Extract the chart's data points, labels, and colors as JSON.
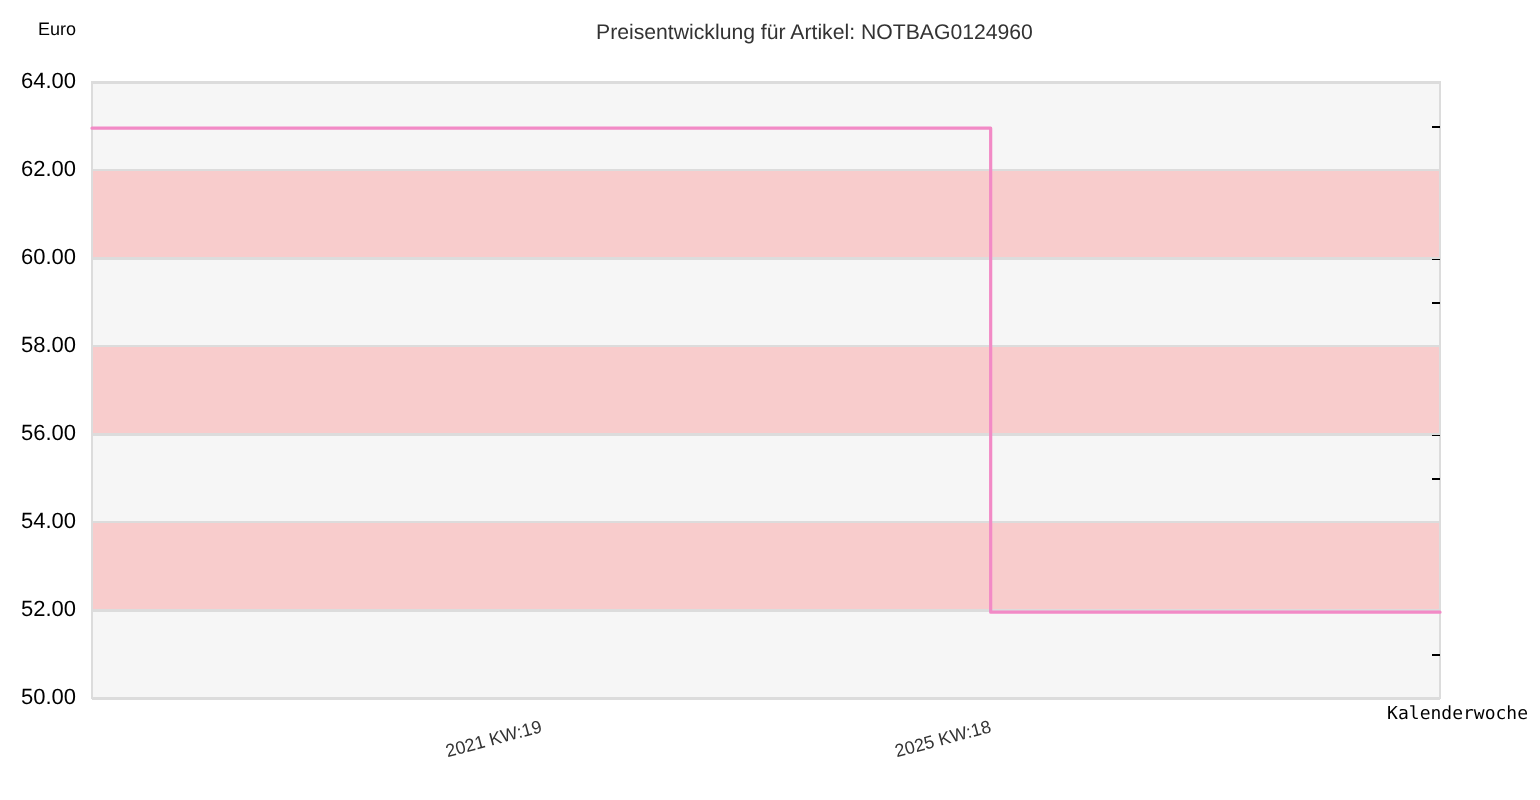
{
  "chart_data": {
    "type": "step",
    "title": "Preisentwicklung für Artikel: NOTBAG0124960",
    "xlabel": "Kalenderwoche",
    "ylabel": "Euro",
    "categories": [
      null,
      "2021 KW:19",
      "2025 KW:18",
      null
    ],
    "values": [
      62.95,
      62.95,
      51.95,
      51.95
    ],
    "color": "#f28ac6",
    "ylim": [
      50,
      64
    ],
    "yticks": [
      {
        "value": 50,
        "label": "50.00"
      },
      {
        "value": 52,
        "label": "52.00"
      },
      {
        "value": 54,
        "label": "54.00"
      },
      {
        "value": 56,
        "label": "56.00"
      },
      {
        "value": 58,
        "label": "58.00"
      },
      {
        "value": 60,
        "label": "60.00"
      },
      {
        "value": 62,
        "label": "62.00"
      },
      {
        "value": 64,
        "label": "64.00"
      }
    ],
    "bands": [
      {
        "axis": "y",
        "from": 52,
        "to": 54,
        "color": "#f8cccc"
      },
      {
        "axis": "y",
        "from": 56,
        "to": 58,
        "color": "#f8cccc"
      },
      {
        "axis": "y",
        "from": 60,
        "to": 62,
        "color": "#f8cccc"
      }
    ],
    "grid": "y",
    "marker": "none",
    "line_style": "solid"
  }
}
